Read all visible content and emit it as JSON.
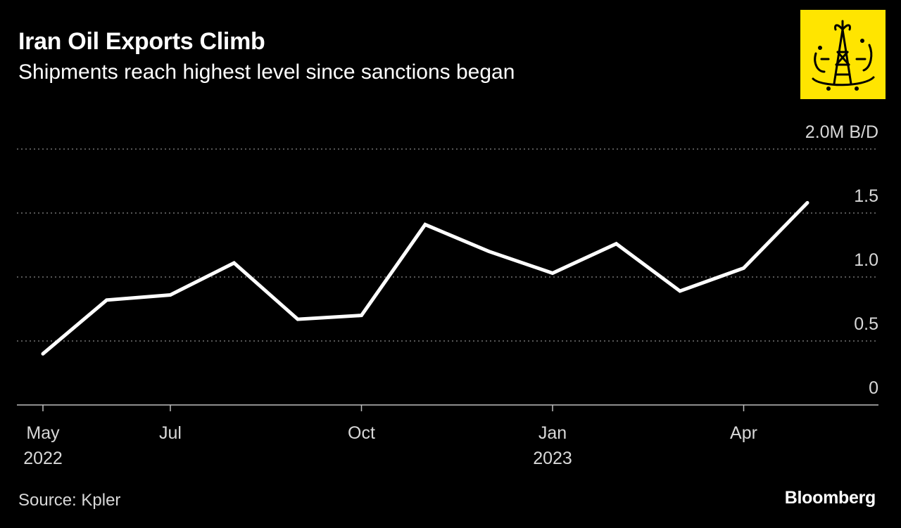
{
  "header": {
    "title": "Iran Oil Exports Climb",
    "subtitle": "Shipments reach highest level since sanctions began"
  },
  "footer": {
    "source": "Source: Kpler",
    "brand": "Bloomberg"
  },
  "logo": {
    "icon": "oil-derrick-icon",
    "color": "#ffe500"
  },
  "chart_data": {
    "type": "line",
    "title": "Iran Oil Exports Climb",
    "subtitle": "Shipments reach highest level since sanctions began",
    "unit_label": "2.0M B/D",
    "ylim": [
      0,
      2.0
    ],
    "yticks": [
      {
        "value": 0,
        "label": "0"
      },
      {
        "value": 0.5,
        "label": "0.5"
      },
      {
        "value": 1.0,
        "label": "1.0"
      },
      {
        "value": 1.5,
        "label": "1.5"
      },
      {
        "value": 2.0,
        "label": "2.0M B/D"
      }
    ],
    "xticks": [
      {
        "x": "2022-05",
        "label": "May",
        "label2": "2022"
      },
      {
        "x": "2022-07",
        "label": "Jul",
        "label2": ""
      },
      {
        "x": "2022-10",
        "label": "Oct",
        "label2": ""
      },
      {
        "x": "2023-01",
        "label": "Jan",
        "label2": "2023"
      },
      {
        "x": "2023-04",
        "label": "Apr",
        "label2": ""
      }
    ],
    "xlim": [
      "2022-05",
      "2023-06"
    ],
    "grid": true,
    "line_color": "#ffffff",
    "series": [
      {
        "x": [
          "2022-05",
          "2022-06",
          "2022-07",
          "2022-08",
          "2022-09",
          "2022-10",
          "2022-11",
          "2022-12",
          "2023-01",
          "2023-02",
          "2023-03",
          "2023-04",
          "2023-05"
        ],
        "values": [
          0.4,
          0.82,
          0.86,
          1.11,
          0.67,
          0.7,
          1.41,
          1.2,
          1.03,
          1.26,
          0.89,
          1.07,
          1.58
        ]
      }
    ]
  }
}
